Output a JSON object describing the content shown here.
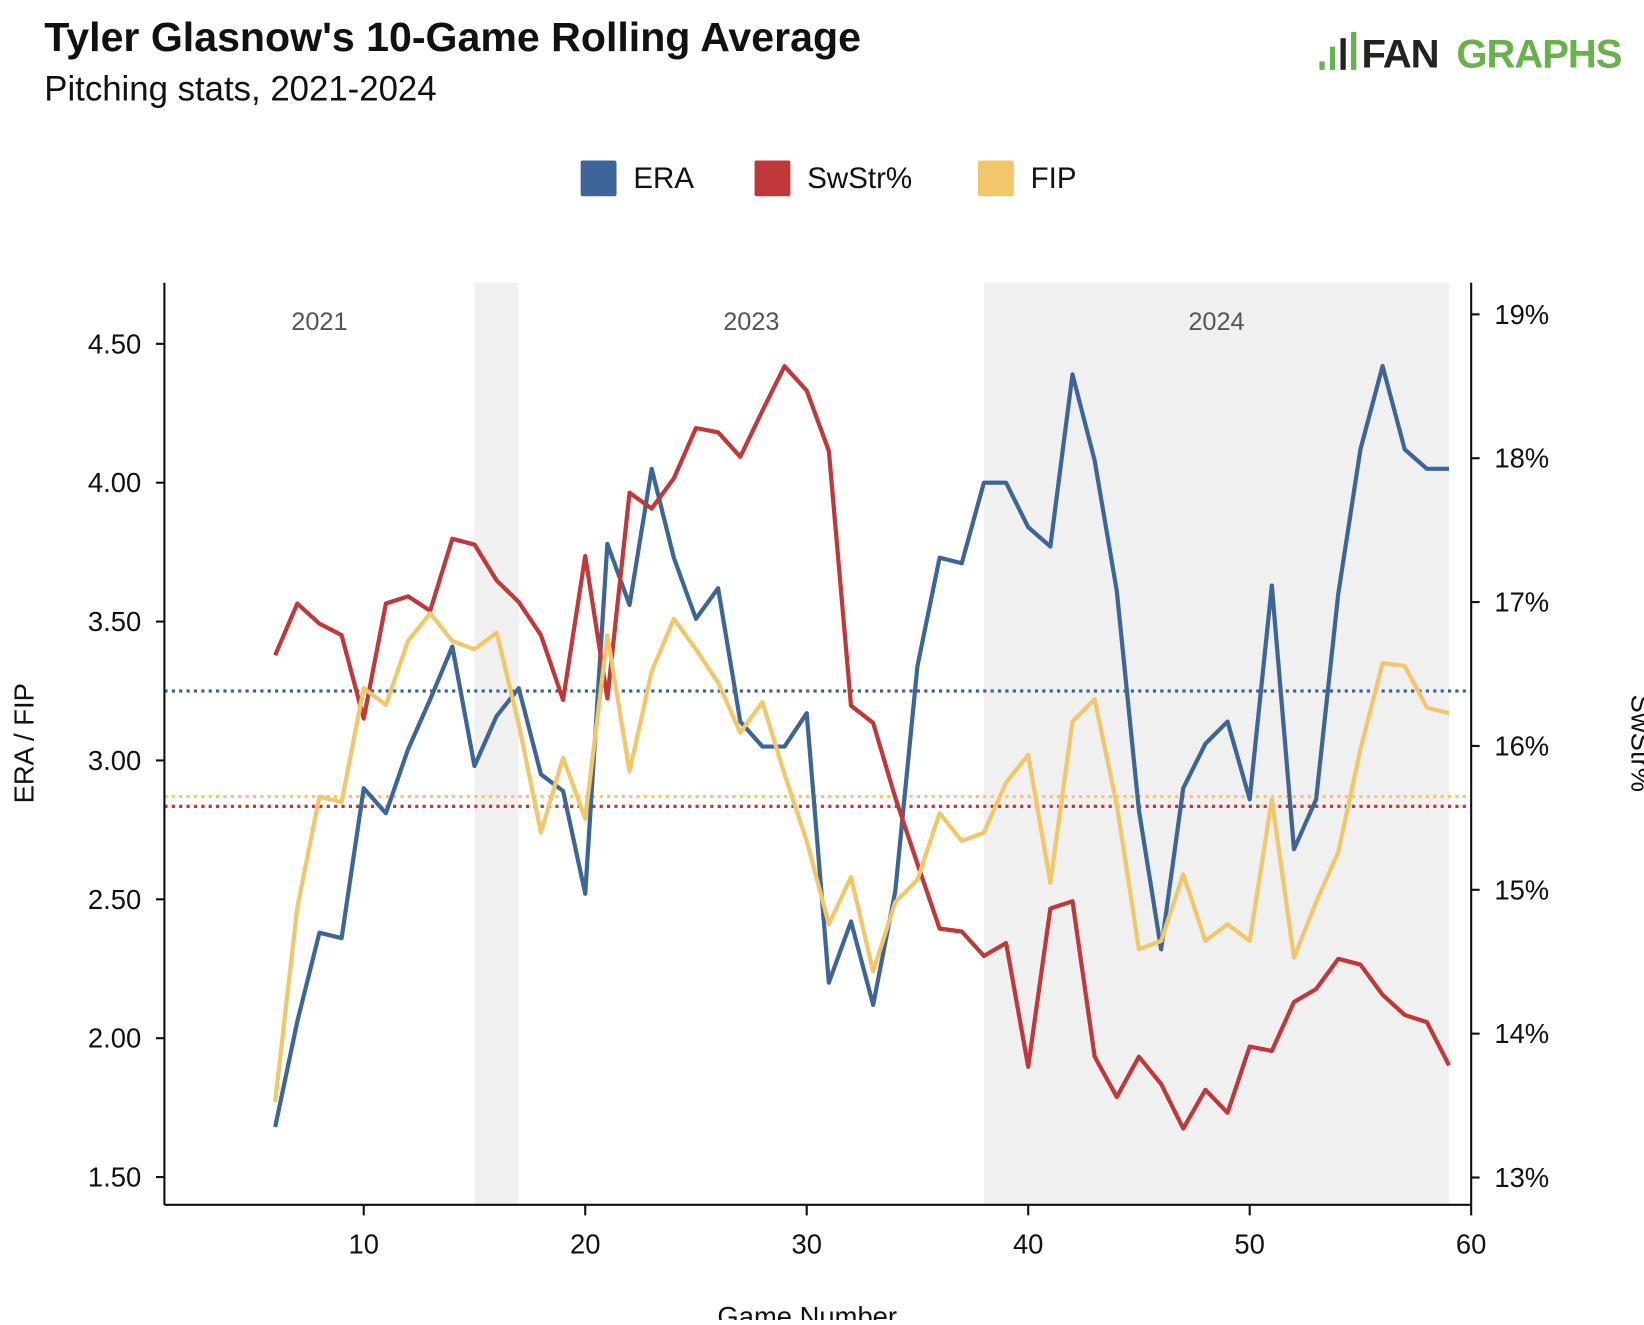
{
  "title": "Tyler Glasnow's 10-Game Rolling Average",
  "subtitle": "Pitching stats, 2021-2024",
  "logo": "FANGRAPHS",
  "chart_data": {
    "type": "line",
    "xlabel": "Game Number",
    "ylabel_left": "ERA / FIP",
    "ylabel_right": "SwStr%",
    "xlim": [
      1,
      60
    ],
    "ylim_left": [
      1.4,
      4.72
    ],
    "ylim_right": [
      12.81,
      19.22
    ],
    "x_ticks": [
      "10",
      "20",
      "30",
      "40",
      "50",
      "60"
    ],
    "y_left_ticks": [
      "1.50",
      "2.00",
      "2.50",
      "3.00",
      "3.50",
      "4.00",
      "4.50"
    ],
    "y_right_ticks": [
      "13%",
      "14%",
      "15%",
      "16%",
      "17%",
      "18%",
      "19%"
    ],
    "legend": {
      "placement": "top-center",
      "entries": [
        "ERA",
        "SwStr%",
        "FIP"
      ]
    },
    "colors": {
      "ERA": "#3d6597",
      "SwStr%": "#c0383a",
      "FIP": "#f2c76b",
      "band": "#f0f0f0"
    },
    "season_bands": [
      {
        "label": "2021",
        "start": 1,
        "end": 15,
        "shaded": false
      },
      {
        "label": "",
        "start": 15,
        "end": 17,
        "shaded": true
      },
      {
        "label": "2023",
        "start": 17,
        "end": 38,
        "shaded": false
      },
      {
        "label": "2024",
        "start": 38,
        "end": 59,
        "shaded": true
      }
    ],
    "x": [
      6,
      7,
      8,
      9,
      10,
      11,
      12,
      13,
      14,
      15,
      16,
      17,
      18,
      19,
      20,
      21,
      22,
      23,
      24,
      25,
      26,
      27,
      28,
      29,
      30,
      31,
      32,
      33,
      34,
      35,
      36,
      37,
      38,
      39,
      40,
      41,
      42,
      43,
      44,
      45,
      46,
      47,
      48,
      49,
      50,
      51,
      52,
      53,
      54,
      55,
      56,
      57,
      58,
      59
    ],
    "series": [
      {
        "name": "ERA",
        "axis": "left",
        "average": 3.25,
        "values": [
          1.68,
          2.06,
          2.38,
          2.36,
          2.9,
          2.81,
          3.04,
          3.22,
          3.41,
          2.98,
          3.16,
          3.26,
          2.95,
          2.89,
          2.52,
          3.78,
          3.56,
          4.05,
          3.73,
          3.51,
          3.62,
          3.14,
          3.05,
          3.05,
          3.17,
          2.2,
          2.42,
          2.12,
          2.53,
          3.34,
          3.73,
          3.71,
          4.0,
          4.0,
          3.84,
          3.77,
          4.39,
          4.08,
          3.61,
          2.82,
          2.32,
          2.9,
          3.06,
          3.14,
          2.86,
          3.63,
          2.68,
          2.86,
          3.6,
          4.12,
          4.42,
          4.12,
          4.05,
          4.05
        ]
      },
      {
        "name": "SwStr%",
        "axis": "right",
        "average": 15.58,
        "values": [
          16.63,
          16.99,
          16.85,
          16.77,
          16.19,
          16.99,
          17.04,
          16.94,
          17.44,
          17.4,
          17.15,
          17.0,
          16.77,
          16.32,
          17.32,
          16.33,
          17.76,
          17.65,
          17.86,
          18.21,
          18.18,
          18.01,
          18.33,
          18.64,
          18.47,
          18.05,
          16.28,
          16.16,
          15.64,
          15.18,
          14.73,
          14.71,
          14.54,
          14.63,
          13.77,
          14.87,
          14.92,
          13.84,
          13.56,
          13.84,
          13.65,
          13.34,
          13.61,
          13.45,
          13.91,
          13.88,
          14.22,
          14.31,
          14.52,
          14.48,
          14.27,
          14.13,
          14.08,
          13.78
        ]
      },
      {
        "name": "FIP",
        "axis": "left",
        "average": 2.87,
        "values": [
          1.77,
          2.47,
          2.87,
          2.85,
          3.26,
          3.2,
          3.43,
          3.53,
          3.43,
          3.4,
          3.46,
          3.13,
          2.74,
          3.01,
          2.79,
          3.45,
          2.96,
          3.32,
          3.51,
          3.4,
          3.28,
          3.1,
          3.21,
          2.95,
          2.71,
          2.41,
          2.58,
          2.24,
          2.49,
          2.57,
          2.81,
          2.71,
          2.74,
          2.92,
          3.02,
          2.56,
          3.14,
          3.22,
          2.84,
          2.32,
          2.35,
          2.59,
          2.35,
          2.41,
          2.35,
          2.86,
          2.29,
          2.49,
          2.67,
          3.04,
          3.35,
          3.34,
          3.19,
          3.17
        ]
      }
    ]
  }
}
